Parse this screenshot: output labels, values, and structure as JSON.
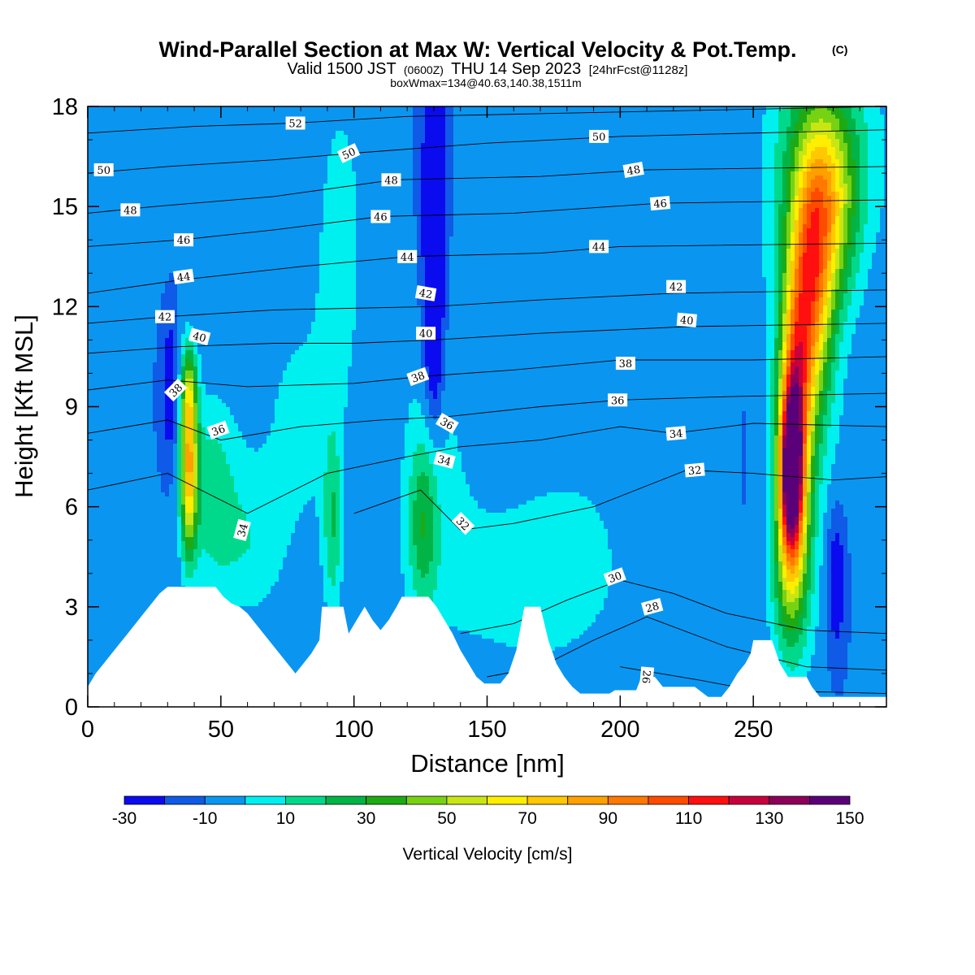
{
  "chart_data": {
    "type": "heatmap",
    "title": "Wind-Parallel Section at Max W: Vertical Velocity & Pot.Temp.",
    "copyright": "(C)",
    "subtitle": {
      "valid_main": "Valid 1500 JST",
      "valid_utc": "(0600Z)",
      "valid_date": "THU 14 Sep 2023",
      "forecast": "[24hrFcst@1128z]"
    },
    "box_info": "boxWmax=134@40.63,140.38,1511m",
    "xlabel": "Distance [nm]",
    "ylabel": "Height [Kft MSL]",
    "xlim": [
      0,
      300
    ],
    "ylim": [
      0,
      18
    ],
    "x_ticks": [
      {
        "value": 0,
        "label": "0"
      },
      {
        "value": 50,
        "label": "50"
      },
      {
        "value": 100,
        "label": "100"
      },
      {
        "value": 150,
        "label": "150"
      },
      {
        "value": 200,
        "label": "200"
      },
      {
        "value": 250,
        "label": "250"
      }
    ],
    "y_ticks": [
      {
        "value": 0,
        "label": "0"
      },
      {
        "value": 3,
        "label": "3"
      },
      {
        "value": 6,
        "label": "6"
      },
      {
        "value": 9,
        "label": "9"
      },
      {
        "value": 12,
        "label": "12"
      },
      {
        "value": 15,
        "label": "15"
      },
      {
        "value": 18,
        "label": "18"
      }
    ],
    "colorbar": {
      "label": "Vertical Velocity [cm/s]",
      "levels": [
        -30,
        -20,
        -10,
        0,
        10,
        20,
        30,
        40,
        50,
        60,
        70,
        80,
        90,
        100,
        110,
        120,
        130,
        140,
        150
      ],
      "colors": [
        "#0b0bf0",
        "#0f5ae6",
        "#0a96f0",
        "#00f0f0",
        "#00d98c",
        "#00b446",
        "#1eaa14",
        "#78d214",
        "#c8e614",
        "#ffee00",
        "#ffc800",
        "#ffa000",
        "#ff7800",
        "#ff4b00",
        "#ff0f0f",
        "#c8003c",
        "#8c005a",
        "#5a0078"
      ],
      "tick_labels": [
        {
          "value": -30,
          "label": "-30"
        },
        {
          "value": -10,
          "label": "-10"
        },
        {
          "value": 10,
          "label": "10"
        },
        {
          "value": 30,
          "label": "30"
        },
        {
          "value": 50,
          "label": "50"
        },
        {
          "value": 70,
          "label": "70"
        },
        {
          "value": 90,
          "label": "90"
        },
        {
          "value": 110,
          "label": "110"
        },
        {
          "value": 130,
          "label": "130"
        },
        {
          "value": 150,
          "label": "150"
        }
      ]
    },
    "background_velocity": -10,
    "velocity_features": [
      {
        "x": 38,
        "y": 7.2,
        "sx": 2.2,
        "sy": 1.8,
        "v": 80
      },
      {
        "x": 38,
        "y": 9.5,
        "sx": 2.2,
        "sy": 1.0,
        "v": 35
      },
      {
        "x": 46,
        "y": 6.5,
        "sx": 7,
        "sy": 2.0,
        "v": 25
      },
      {
        "x": 60,
        "y": 4.8,
        "sx": 9,
        "sy": 1.6,
        "v": 15
      },
      {
        "x": 31,
        "y": 9.5,
        "sx": 2.0,
        "sy": 1.5,
        "v": -22
      },
      {
        "x": 130,
        "y": 14.5,
        "sx": 3,
        "sy": 3.5,
        "v": -35
      },
      {
        "x": 130,
        "y": 10.5,
        "sx": 2.5,
        "sy": 1.5,
        "v": -15
      },
      {
        "x": 126,
        "y": 5.5,
        "sx": 4,
        "sy": 1.8,
        "v": 30
      },
      {
        "x": 92,
        "y": 5.5,
        "sx": 2.5,
        "sy": 2.0,
        "v": 25
      },
      {
        "x": 95,
        "y": 14.5,
        "sx": 6,
        "sy": 3.0,
        "v": 15
      },
      {
        "x": 80,
        "y": 8.5,
        "sx": 15,
        "sy": 3.5,
        "v": 12
      },
      {
        "x": 130,
        "y": 7.5,
        "sx": 12,
        "sy": 4.0,
        "v": 10
      },
      {
        "x": 165,
        "y": 3.5,
        "sx": 25,
        "sy": 2.0,
        "v": 12
      },
      {
        "x": 190,
        "y": 9.0,
        "sx": 30,
        "sy": 5.0,
        "v": 8
      },
      {
        "x": 15,
        "y": 15.5,
        "sx": 12,
        "sy": 2.0,
        "v": 8
      },
      {
        "x": 264,
        "y": 7.0,
        "sx": 3.0,
        "sy": 1.7,
        "v": 125
      },
      {
        "x": 266,
        "y": 9.0,
        "sx": 4.0,
        "sy": 2.8,
        "v": 85
      },
      {
        "x": 272,
        "y": 12.5,
        "sx": 5.0,
        "sy": 2.5,
        "v": 70
      },
      {
        "x": 278,
        "y": 15.0,
        "sx": 7.0,
        "sy": 2.0,
        "v": 50
      },
      {
        "x": 268,
        "y": 12.0,
        "sx": 11,
        "sy": 6.0,
        "v": 22
      },
      {
        "x": 280,
        "y": 16.5,
        "sx": 14,
        "sy": 2.5,
        "v": 25
      },
      {
        "x": 264,
        "y": 4.0,
        "sx": 5.0,
        "sy": 2.0,
        "v": 40
      },
      {
        "x": 281,
        "y": 3.8,
        "sx": 2.5,
        "sy": 1.5,
        "v": -25
      },
      {
        "x": 250,
        "y": 9.0,
        "sx": 6,
        "sy": 4.0,
        "v": -5
      }
    ],
    "terrain_height_kft": [
      {
        "x": 0,
        "h": 0.6
      },
      {
        "x": 3,
        "h": 1.0
      },
      {
        "x": 6,
        "h": 1.3
      },
      {
        "x": 9,
        "h": 1.6
      },
      {
        "x": 12,
        "h": 1.9
      },
      {
        "x": 15,
        "h": 2.2
      },
      {
        "x": 18,
        "h": 2.5
      },
      {
        "x": 21,
        "h": 2.8
      },
      {
        "x": 24,
        "h": 3.1
      },
      {
        "x": 27,
        "h": 3.4
      },
      {
        "x": 30,
        "h": 3.6
      },
      {
        "x": 48,
        "h": 3.6
      },
      {
        "x": 51,
        "h": 3.3
      },
      {
        "x": 54,
        "h": 3.1
      },
      {
        "x": 57,
        "h": 3.0
      },
      {
        "x": 60,
        "h": 2.8
      },
      {
        "x": 63,
        "h": 2.5
      },
      {
        "x": 66,
        "h": 2.2
      },
      {
        "x": 69,
        "h": 1.9
      },
      {
        "x": 72,
        "h": 1.6
      },
      {
        "x": 75,
        "h": 1.3
      },
      {
        "x": 78,
        "h": 1.0
      },
      {
        "x": 81,
        "h": 1.3
      },
      {
        "x": 84,
        "h": 1.6
      },
      {
        "x": 87,
        "h": 2.0
      },
      {
        "x": 88,
        "h": 3.0
      },
      {
        "x": 96,
        "h": 3.0
      },
      {
        "x": 98,
        "h": 2.2
      },
      {
        "x": 101,
        "h": 2.6
      },
      {
        "x": 104,
        "h": 3.0
      },
      {
        "x": 107,
        "h": 2.6
      },
      {
        "x": 110,
        "h": 2.3
      },
      {
        "x": 113,
        "h": 2.6
      },
      {
        "x": 116,
        "h": 3.0
      },
      {
        "x": 118,
        "h": 3.3
      },
      {
        "x": 128,
        "h": 3.3
      },
      {
        "x": 131,
        "h": 3.0
      },
      {
        "x": 134,
        "h": 2.6
      },
      {
        "x": 137,
        "h": 2.2
      },
      {
        "x": 140,
        "h": 1.7
      },
      {
        "x": 143,
        "h": 1.3
      },
      {
        "x": 146,
        "h": 0.9
      },
      {
        "x": 149,
        "h": 0.7
      },
      {
        "x": 155,
        "h": 0.7
      },
      {
        "x": 158,
        "h": 1.0
      },
      {
        "x": 161,
        "h": 1.7
      },
      {
        "x": 164,
        "h": 3.0
      },
      {
        "x": 170,
        "h": 3.0
      },
      {
        "x": 173,
        "h": 2.0
      },
      {
        "x": 176,
        "h": 1.3
      },
      {
        "x": 179,
        "h": 0.9
      },
      {
        "x": 182,
        "h": 0.6
      },
      {
        "x": 185,
        "h": 0.4
      },
      {
        "x": 196,
        "h": 0.4
      },
      {
        "x": 198,
        "h": 0.5
      },
      {
        "x": 206,
        "h": 0.5
      },
      {
        "x": 208,
        "h": 0.9
      },
      {
        "x": 213,
        "h": 0.9
      },
      {
        "x": 216,
        "h": 0.6
      },
      {
        "x": 228,
        "h": 0.6
      },
      {
        "x": 233,
        "h": 0.3
      },
      {
        "x": 238,
        "h": 0.3
      },
      {
        "x": 241,
        "h": 0.6
      },
      {
        "x": 244,
        "h": 1.0
      },
      {
        "x": 247,
        "h": 1.3
      },
      {
        "x": 249,
        "h": 1.6
      },
      {
        "x": 250,
        "h": 2.0
      },
      {
        "x": 257,
        "h": 2.0
      },
      {
        "x": 260,
        "h": 1.3
      },
      {
        "x": 263,
        "h": 0.9
      },
      {
        "x": 270,
        "h": 0.9
      },
      {
        "x": 272,
        "h": 0.6
      },
      {
        "x": 275,
        "h": 0.3
      },
      {
        "x": 300,
        "h": 0.3
      }
    ],
    "theta_contours": [
      {
        "level": 26,
        "points": [
          [
            200,
            1.2
          ],
          [
            215,
            1.0
          ],
          [
            230,
            0.8
          ],
          [
            250,
            0.5
          ],
          [
            300,
            0.4
          ]
        ]
      },
      {
        "level": 28,
        "points": [
          [
            150,
            0.9
          ],
          [
            170,
            1.2
          ],
          [
            190,
            2.0
          ],
          [
            210,
            2.7
          ],
          [
            240,
            1.8
          ],
          [
            270,
            1.2
          ],
          [
            300,
            1.1
          ]
        ]
      },
      {
        "level": 30,
        "points": [
          [
            140,
            2.2
          ],
          [
            160,
            2.5
          ],
          [
            180,
            3.2
          ],
          [
            200,
            3.8
          ],
          [
            220,
            3.4
          ],
          [
            240,
            2.8
          ],
          [
            270,
            2.3
          ],
          [
            300,
            2.2
          ]
        ]
      },
      {
        "level": 32,
        "points": [
          [
            100,
            5.8
          ],
          [
            125,
            6.5
          ],
          [
            140,
            5.3
          ],
          [
            160,
            5.5
          ],
          [
            190,
            6.0
          ],
          [
            225,
            7.1
          ],
          [
            250,
            7.0
          ],
          [
            280,
            6.8
          ],
          [
            300,
            6.9
          ]
        ]
      },
      {
        "level": 34,
        "points": [
          [
            0,
            6.5
          ],
          [
            30,
            7.0
          ],
          [
            60,
            5.8
          ],
          [
            90,
            7.0
          ],
          [
            120,
            7.5
          ],
          [
            140,
            7.8
          ],
          [
            170,
            8.0
          ],
          [
            200,
            8.4
          ],
          [
            220,
            8.2
          ],
          [
            250,
            8.5
          ],
          [
            300,
            8.4
          ]
        ]
      },
      {
        "level": 36,
        "points": [
          [
            0,
            8.2
          ],
          [
            30,
            8.6
          ],
          [
            50,
            8.0
          ],
          [
            80,
            8.4
          ],
          [
            110,
            8.6
          ],
          [
            135,
            8.7
          ],
          [
            170,
            9.0
          ],
          [
            200,
            9.2
          ],
          [
            240,
            9.3
          ],
          [
            300,
            9.4
          ]
        ]
      },
      {
        "level": 38,
        "points": [
          [
            0,
            9.5
          ],
          [
            30,
            9.8
          ],
          [
            60,
            9.6
          ],
          [
            100,
            9.7
          ],
          [
            125,
            9.9
          ],
          [
            160,
            10.1
          ],
          [
            200,
            10.4
          ],
          [
            250,
            10.4
          ],
          [
            300,
            10.5
          ]
        ]
      },
      {
        "level": 40,
        "points": [
          [
            0,
            10.6
          ],
          [
            35,
            10.8
          ],
          [
            70,
            10.9
          ],
          [
            100,
            10.9
          ],
          [
            130,
            11.0
          ],
          [
            170,
            11.2
          ],
          [
            225,
            11.4
          ],
          [
            300,
            11.5
          ]
        ]
      },
      {
        "level": 42,
        "points": [
          [
            0,
            11.5
          ],
          [
            30,
            11.7
          ],
          [
            70,
            11.9
          ],
          [
            130,
            12.0
          ],
          [
            170,
            12.2
          ],
          [
            220,
            12.4
          ],
          [
            300,
            12.5
          ]
        ]
      },
      {
        "level": 44,
        "points": [
          [
            0,
            12.4
          ],
          [
            35,
            12.8
          ],
          [
            80,
            13.2
          ],
          [
            120,
            13.5
          ],
          [
            170,
            13.6
          ],
          [
            200,
            13.8
          ],
          [
            300,
            13.9
          ]
        ]
      },
      {
        "level": 46,
        "points": [
          [
            0,
            13.8
          ],
          [
            35,
            14.0
          ],
          [
            70,
            14.3
          ],
          [
            110,
            14.7
          ],
          [
            160,
            14.8
          ],
          [
            215,
            15.1
          ],
          [
            300,
            15.2
          ]
        ]
      },
      {
        "level": 48,
        "points": [
          [
            0,
            14.8
          ],
          [
            25,
            15.0
          ],
          [
            70,
            15.3
          ],
          [
            115,
            15.8
          ],
          [
            170,
            15.9
          ],
          [
            210,
            16.1
          ],
          [
            300,
            16.2
          ]
        ]
      },
      {
        "level": 50,
        "points": [
          [
            0,
            16.0
          ],
          [
            30,
            16.2
          ],
          [
            70,
            16.4
          ],
          [
            100,
            16.6
          ],
          [
            150,
            16.9
          ],
          [
            200,
            17.1
          ],
          [
            300,
            17.3
          ]
        ]
      },
      {
        "level": 52,
        "points": [
          [
            0,
            17.2
          ],
          [
            40,
            17.4
          ],
          [
            78,
            17.5
          ],
          [
            120,
            17.7
          ],
          [
            180,
            17.8
          ],
          [
            300,
            18.0
          ]
        ]
      }
    ],
    "contour_labels": [
      {
        "text": "52",
        "x": 78,
        "y": 17.5,
        "angle": 0
      },
      {
        "text": "50",
        "x": 6,
        "y": 16.1,
        "angle": 0
      },
      {
        "text": "50",
        "x": 98,
        "y": 16.6,
        "angle": -25
      },
      {
        "text": "50",
        "x": 192,
        "y": 17.1,
        "angle": 0
      },
      {
        "text": "48",
        "x": 16,
        "y": 14.9,
        "angle": 0
      },
      {
        "text": "48",
        "x": 114,
        "y": 15.8,
        "angle": 0
      },
      {
        "text": "48",
        "x": 205,
        "y": 16.1,
        "angle": -10
      },
      {
        "text": "46",
        "x": 36,
        "y": 14.0,
        "angle": 0
      },
      {
        "text": "46",
        "x": 110,
        "y": 14.7,
        "angle": 0
      },
      {
        "text": "46",
        "x": 215,
        "y": 15.1,
        "angle": -5
      },
      {
        "text": "44",
        "x": 36,
        "y": 12.9,
        "angle": -8
      },
      {
        "text": "44",
        "x": 120,
        "y": 13.5,
        "angle": 0
      },
      {
        "text": "44",
        "x": 192,
        "y": 13.8,
        "angle": 0
      },
      {
        "text": "42",
        "x": 29,
        "y": 11.7,
        "angle": 0
      },
      {
        "text": "42",
        "x": 127,
        "y": 12.4,
        "angle": 10
      },
      {
        "text": "42",
        "x": 221,
        "y": 12.6,
        "angle": 0
      },
      {
        "text": "40",
        "x": 42,
        "y": 11.1,
        "angle": 15
      },
      {
        "text": "40",
        "x": 127,
        "y": 11.2,
        "angle": 0
      },
      {
        "text": "40",
        "x": 225,
        "y": 11.6,
        "angle": 5
      },
      {
        "text": "38",
        "x": 33,
        "y": 9.5,
        "angle": -45
      },
      {
        "text": "38",
        "x": 124,
        "y": 9.9,
        "angle": -20
      },
      {
        "text": "38",
        "x": 202,
        "y": 10.3,
        "angle": 0
      },
      {
        "text": "36",
        "x": 49,
        "y": 8.3,
        "angle": -20
      },
      {
        "text": "36",
        "x": 135,
        "y": 8.5,
        "angle": 30
      },
      {
        "text": "36",
        "x": 199,
        "y": 9.2,
        "angle": 0
      },
      {
        "text": "34",
        "x": 58,
        "y": 5.3,
        "angle": -75
      },
      {
        "text": "34",
        "x": 134,
        "y": 7.4,
        "angle": 15
      },
      {
        "text": "34",
        "x": 221,
        "y": 8.2,
        "angle": -5
      },
      {
        "text": "32",
        "x": 141,
        "y": 5.5,
        "angle": 45
      },
      {
        "text": "32",
        "x": 228,
        "y": 7.1,
        "angle": -5
      },
      {
        "text": "30",
        "x": 198,
        "y": 3.9,
        "angle": -20
      },
      {
        "text": "28",
        "x": 212,
        "y": 3.0,
        "angle": -15
      },
      {
        "text": "26",
        "x": 210,
        "y": 0.9,
        "angle": 95
      }
    ]
  }
}
